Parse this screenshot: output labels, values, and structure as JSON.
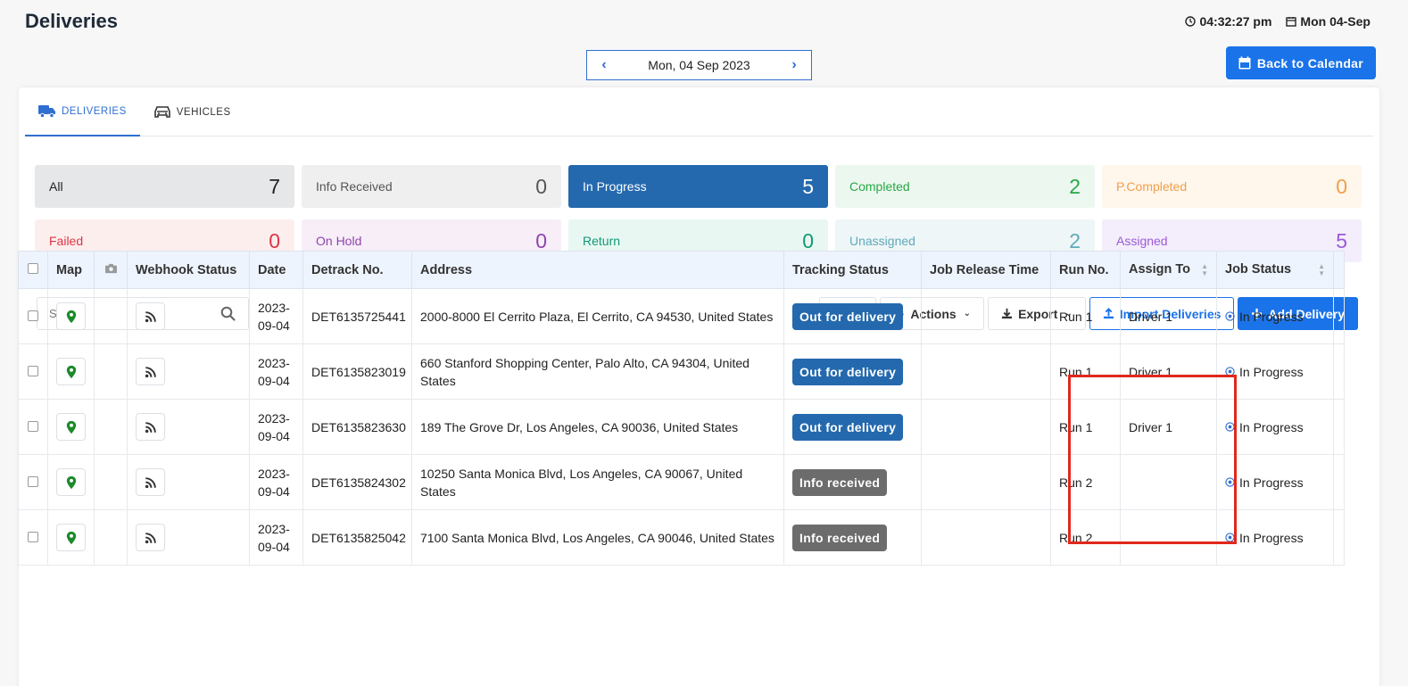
{
  "header": {
    "title": "Deliveries",
    "time": "04:32:27 pm",
    "date": "Mon 04-Sep"
  },
  "date_nav": {
    "label": "Mon, 04 Sep 2023"
  },
  "back_button": {
    "label": "Back to Calendar"
  },
  "tabs": [
    {
      "label": "DELIVERIES",
      "active": true
    },
    {
      "label": "VEHICLES",
      "active": false
    }
  ],
  "status_boxes": [
    {
      "label": "All",
      "count": "7",
      "bg": "#e6e7e8",
      "fg": "#222222"
    },
    {
      "label": "Info Received",
      "count": "0",
      "bg": "#efefef",
      "fg": "#555555"
    },
    {
      "label": "In Progress",
      "count": "5",
      "bg": "#2469ad",
      "fg": "#ffffff"
    },
    {
      "label": "Completed",
      "count": "2",
      "bg": "#ecf8ef",
      "fg": "#28a745"
    },
    {
      "label": "P.Completed",
      "count": "0",
      "bg": "#fff6ec",
      "fg": "#f0a04b"
    },
    {
      "label": "Failed",
      "count": "0",
      "bg": "#fdeeee",
      "fg": "#dc3545"
    },
    {
      "label": "On Hold",
      "count": "0",
      "bg": "#f7eef8",
      "fg": "#8e44ad"
    },
    {
      "label": "Return",
      "count": "0",
      "bg": "#e8f7f2",
      "fg": "#119977"
    },
    {
      "label": "Unassigned",
      "count": "2",
      "bg": "#eef6f7",
      "fg": "#5fa9ba"
    },
    {
      "label": "Assigned",
      "count": "5",
      "bg": "#f4eefc",
      "fg": "#9b59d6"
    }
  ],
  "search": {
    "placeholder": "Search"
  },
  "toolbar": {
    "actions": "Actions",
    "export": "Export",
    "import": "Import Deliveries",
    "add": "Add Delivery"
  },
  "table": {
    "headers": {
      "map": "Map",
      "webhook": "Webhook Status",
      "date": "Date",
      "detrack": "Detrack No.",
      "address": "Address",
      "tracking": "Tracking Status",
      "release": "Job Release Time",
      "run": "Run No.",
      "assign": "Assign To",
      "job": "Job Status"
    },
    "rows": [
      {
        "date": "2023-09-04",
        "detrack": "DET6135725441",
        "address": "2000-8000 El Cerrito Plaza, El Cerrito, CA 94530, United States",
        "tracking": "Out for delivery",
        "tracking_color": "#2469ad",
        "release": "",
        "run": "Run 1",
        "assign": "Driver 1",
        "job": "In Progress"
      },
      {
        "date": "2023-09-04",
        "detrack": "DET6135823019",
        "address": "660 Stanford Shopping Center, Palo Alto, CA 94304, United States",
        "tracking": "Out for delivery",
        "tracking_color": "#2469ad",
        "release": "",
        "run": "Run 1",
        "assign": "Driver 1",
        "job": "In Progress"
      },
      {
        "date": "2023-09-04",
        "detrack": "DET6135823630",
        "address": "189 The Grove Dr, Los Angeles, CA 90036, United States",
        "tracking": "Out for delivery",
        "tracking_color": "#2469ad",
        "release": "",
        "run": "Run 1",
        "assign": "Driver 1",
        "job": "In Progress"
      },
      {
        "date": "2023-09-04",
        "detrack": "DET6135824302",
        "address": "10250 Santa Monica Blvd, Los Angeles, CA 90067, United States",
        "tracking": "Info received",
        "tracking_color": "#6c6c6c",
        "release": "",
        "run": "Run 2",
        "assign": "",
        "job": "In Progress"
      },
      {
        "date": "2023-09-04",
        "detrack": "DET6135825042",
        "address": "7100 Santa Monica Blvd, Los Angeles, CA 90046, United States",
        "tracking": "Info received",
        "tracking_color": "#6c6c6c",
        "release": "",
        "run": "Run 2",
        "assign": "",
        "job": "In Progress"
      }
    ]
  }
}
